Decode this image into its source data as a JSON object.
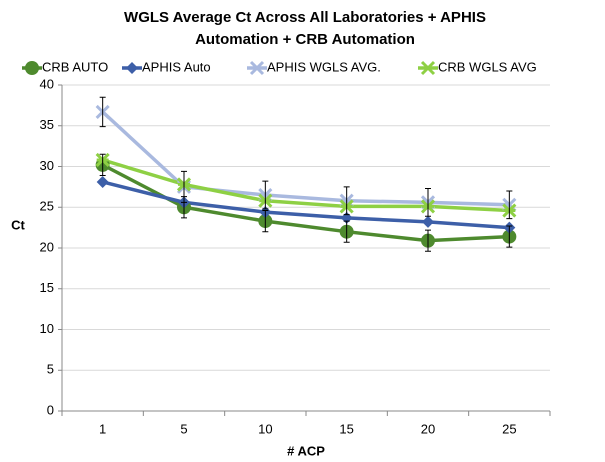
{
  "chart_data": {
    "type": "line",
    "title": [
      "WGLS Average Ct Across All Laboratories + APHIS",
      "Automation + CRB Automation"
    ],
    "x_label": "# ACP",
    "y_label": "Ct",
    "categories": [
      "1",
      "5",
      "10",
      "15",
      "20",
      "25"
    ],
    "series": [
      {
        "name": "CRB AUTO",
        "color": "#4e8a2e",
        "marker": "circle",
        "values": [
          30.2,
          25.0,
          23.3,
          22.0,
          20.9,
          21.4
        ],
        "errors": [
          1.3,
          1.3,
          1.3,
          1.3,
          1.3,
          1.3
        ]
      },
      {
        "name": "APHIS Auto",
        "color": "#3d5fa8",
        "marker": "diamond",
        "values": [
          28.1,
          25.6,
          24.4,
          23.7,
          23.2,
          22.5
        ]
      },
      {
        "name": "APHIS WGLS AVG.",
        "color": "#a9b9df",
        "marker": "x",
        "values": [
          36.7,
          27.5,
          26.5,
          25.8,
          25.6,
          25.3
        ],
        "errors": [
          1.8,
          1.9,
          1.7,
          1.7,
          1.7,
          1.7
        ]
      },
      {
        "name": "CRB WGLS AVG",
        "color": "#8ed044",
        "marker": "star",
        "values": [
          30.8,
          27.8,
          25.8,
          25.1,
          25.1,
          24.6
        ]
      }
    ],
    "ylim": [
      0,
      40
    ],
    "yticks": [
      0,
      5,
      10,
      15,
      20,
      25,
      30,
      35,
      40
    ],
    "grid": true
  }
}
